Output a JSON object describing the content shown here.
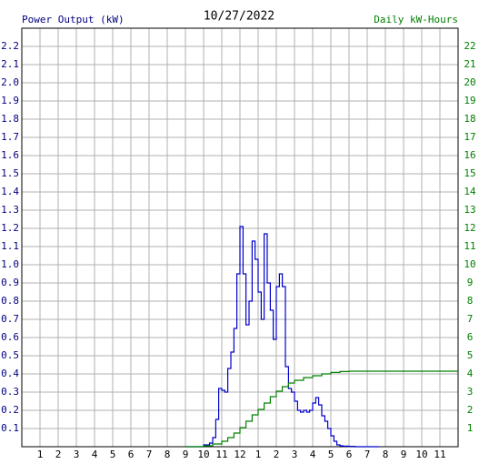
{
  "chart_data": {
    "type": "line",
    "title": "10/27/2022",
    "ylabel": "Power Output (kW)",
    "y2label": "Daily kW-Hours",
    "xlim": [
      0,
      24
    ],
    "xticks": [
      1,
      2,
      3,
      4,
      5,
      6,
      7,
      8,
      9,
      10,
      11,
      12,
      {
        "value": 13,
        "label": "1"
      },
      {
        "value": 14,
        "label": "2"
      },
      {
        "value": 15,
        "label": "3"
      },
      {
        "value": 16,
        "label": "4"
      },
      {
        "value": 17,
        "label": "5"
      },
      {
        "value": 18,
        "label": "6"
      },
      {
        "value": 19,
        "label": "7"
      },
      {
        "value": 20,
        "label": "8"
      },
      {
        "value": 21,
        "label": "9"
      },
      {
        "value": 22,
        "label": "10"
      },
      {
        "value": 23,
        "label": "11"
      }
    ],
    "ylim": [
      0,
      2.3
    ],
    "yticks": [
      0.1,
      0.2,
      0.3,
      0.4,
      0.5,
      0.6,
      0.7,
      0.8,
      0.9,
      {
        "value": 1,
        "label": "1.0"
      },
      1.1,
      1.2,
      1.3,
      1.4,
      1.5,
      1.6,
      1.7,
      1.8,
      1.9,
      {
        "value": 2,
        "label": "2.0"
      },
      2.1,
      2.2
    ],
    "y2lim": [
      0,
      23
    ],
    "y2ticks": [
      1,
      2,
      3,
      4,
      5,
      6,
      7,
      8,
      9,
      10,
      11,
      12,
      13,
      14,
      15,
      16,
      17,
      18,
      19,
      20,
      21,
      22
    ],
    "ylabel_color": "#000080",
    "y2label_color": "#008000",
    "grid": true,
    "series": [
      {
        "color": "#0000cc",
        "axis": "y",
        "x": [
          9,
          10,
          10.33,
          10.5,
          10.67,
          10.83,
          11,
          11.17,
          11.33,
          11.5,
          11.67,
          11.83,
          12,
          12.17,
          12.33,
          12.5,
          12.67,
          12.83,
          13,
          13.17,
          13.33,
          13.5,
          13.67,
          13.83,
          14,
          14.17,
          14.33,
          14.5,
          14.67,
          14.83,
          15,
          15.17,
          15.33,
          15.5,
          15.67,
          15.83,
          16,
          16.17,
          16.33,
          16.5,
          16.67,
          16.83,
          17,
          17.17,
          17.33,
          17.5,
          17.67,
          18,
          18.33,
          19.67
        ],
        "values": [
          0,
          0.01,
          0.02,
          0.05,
          0.15,
          0.32,
          0.31,
          0.3,
          0.43,
          0.52,
          0.65,
          0.95,
          1.21,
          0.95,
          0.67,
          0.8,
          1.13,
          1.03,
          0.85,
          0.7,
          1.17,
          0.9,
          0.75,
          0.59,
          0.88,
          0.95,
          0.88,
          0.44,
          0.32,
          0.3,
          0.25,
          0.2,
          0.19,
          0.2,
          0.19,
          0.2,
          0.24,
          0.27,
          0.23,
          0.17,
          0.14,
          0.1,
          0.06,
          0.03,
          0.01,
          0.005,
          0.003,
          0.002,
          0,
          0
        ]
      },
      {
        "color": "#008000",
        "axis": "y2",
        "x": [
          9,
          10,
          10.5,
          11,
          11.33,
          11.67,
          12,
          12.33,
          12.67,
          13,
          13.33,
          13.67,
          14,
          14.33,
          14.67,
          15,
          15.5,
          16,
          16.5,
          17,
          17.5,
          18,
          24
        ],
        "values": [
          0,
          0.05,
          0.15,
          0.3,
          0.5,
          0.75,
          1.05,
          1.4,
          1.75,
          2.05,
          2.4,
          2.75,
          3.05,
          3.3,
          3.5,
          3.65,
          3.8,
          3.9,
          4.0,
          4.08,
          4.13,
          4.15,
          4.15
        ]
      }
    ]
  }
}
